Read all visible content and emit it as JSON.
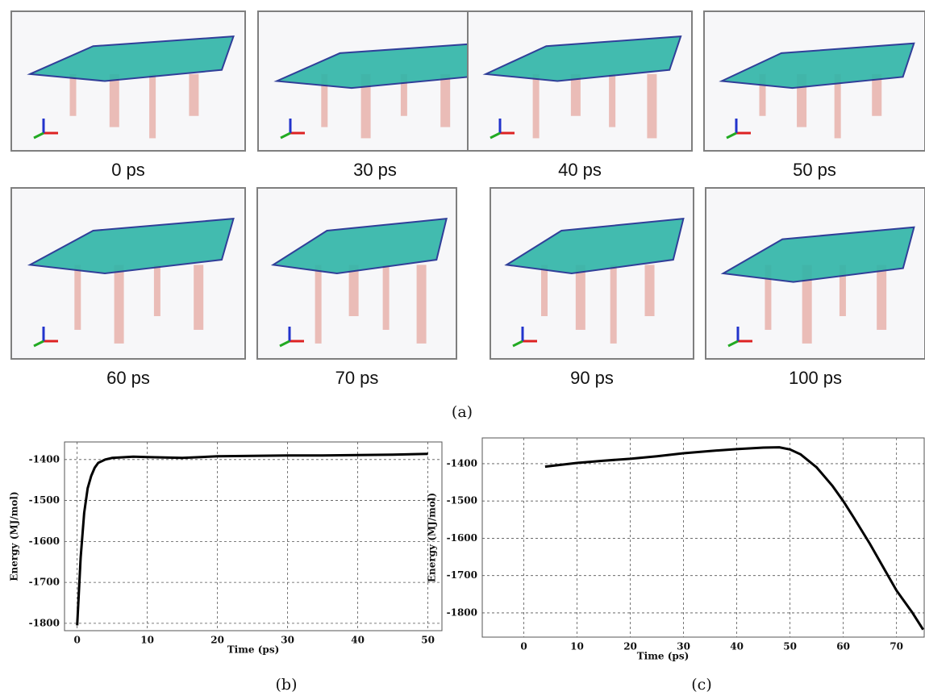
{
  "figure": {
    "panel_label": "(a)",
    "snapshots": [
      {
        "label": "0 ps"
      },
      {
        "label": "30 ps"
      },
      {
        "label": "40 ps"
      },
      {
        "label": "50 ps"
      },
      {
        "label": "60 ps"
      },
      {
        "label": "70 ps"
      },
      {
        "label": "90 ps"
      },
      {
        "label": "100 ps"
      }
    ]
  },
  "chart_data": [
    {
      "type": "line",
      "label": "(b)",
      "y_label": "Energy (MJ/mol)",
      "x_label": "Time (ps)",
      "color": "#000000",
      "grid": true,
      "x": [
        0,
        0.5,
        1,
        1.5,
        2,
        2.5,
        3,
        4,
        5,
        6,
        8,
        10,
        15,
        20,
        25,
        30,
        35,
        40,
        45,
        50
      ],
      "values": [
        -1805,
        -1640,
        -1530,
        -1470,
        -1440,
        -1420,
        -1408,
        -1400,
        -1396,
        -1395,
        -1393,
        -1394,
        -1396,
        -1392,
        -1391,
        -1390,
        -1390,
        -1389,
        -1388,
        -1386
      ],
      "xlim": [
        -1.8,
        52
      ],
      "ylim": [
        -1818,
        -1357
      ],
      "xticks": [
        0,
        10,
        20,
        30,
        40,
        50
      ],
      "yticks": [
        -1400,
        -1500,
        -1600,
        -1700,
        -1800
      ]
    },
    {
      "type": "line",
      "label": "(c)",
      "y_label": "Energy (MJ/mol)",
      "x_label": "Time (ps)",
      "color": "#000000",
      "grid": true,
      "x": [
        4,
        10,
        15,
        20,
        25,
        30,
        35,
        40,
        45,
        48,
        50,
        52,
        55,
        58,
        60,
        62,
        65,
        68,
        70,
        73,
        75
      ],
      "values": [
        -1408,
        -1398,
        -1392,
        -1387,
        -1380,
        -1372,
        -1366,
        -1361,
        -1357,
        -1356,
        -1362,
        -1375,
        -1410,
        -1460,
        -1500,
        -1545,
        -1615,
        -1690,
        -1740,
        -1800,
        -1845
      ],
      "xlim": [
        -7.8,
        75.2
      ],
      "ylim": [
        -1865,
        -1331
      ],
      "xticks": [
        0,
        10,
        20,
        30,
        40,
        50,
        60,
        70
      ],
      "yticks": [
        -1400,
        -1500,
        -1600,
        -1700,
        -1800
      ]
    }
  ]
}
